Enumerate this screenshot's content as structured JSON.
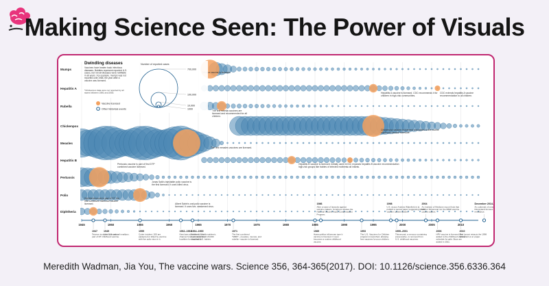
{
  "header": {
    "title": "Making Science Seen: The Power of Visuals"
  },
  "infographic": {
    "heading": "Dwindling diseases",
    "intro": "Vaccines have beaten back infectious diseases. Bubbles represent reported U.S. cases, but not all diseases were notifiable in all years. For example, mumps was not reported until 1968, the year after a vaccine was licensed.",
    "footnote": "*Chickenpox data were not reported by all states between 1981 and 2003.",
    "legend_scale_title": "Number of reported cases",
    "legend_scale_values": [
      "700,000",
      "100,000",
      "10,000",
      "1000"
    ],
    "legend_vaccine": "Vaccine licensed",
    "legend_events": "Other historical events",
    "diseases": [
      {
        "name": "Mumps",
        "note": "Mumps vaccine is licensed."
      },
      {
        "name": "Hepatitis A",
        "note": "Hepatitis A vaccine is licensed. CDC recommends it for children in high-risk communities."
      },
      {
        "name": "Rubella",
        "note": "The first rubella vaccines are licensed and recommended for all children."
      },
      {
        "name": "Chickenpox",
        "note": "Chickenpox vaccine is licensed and added to the routine childhood vaccine schedule."
      },
      {
        "name": "Measles",
        "note": "The first measles vaccines are licensed."
      },
      {
        "name": "Hepatitis B",
        "note": "Hepatitis B vaccine is licensed. Initially used in high-risk groups like babies of infected mothers."
      },
      {
        "name": "Pertussis",
        "note": "Pertussis vaccine is part of first DTP combined vaccine licensed."
      },
      {
        "name": "Polio",
        "note": "Jonas Salk's injectable polio vaccine is the first licensed. It uses killed virus."
      },
      {
        "name": "Diphtheria",
        "note": "Diphtheria toxoid is part of DT, the first combined childhood vaccine licensed."
      }
    ],
    "extra_notes": {
      "hepA_2006": "CDC extends hepatitis A vaccine recommendation to all children.",
      "hepB_1991": "CDC expands hepatitis B vaccine recommendation to all infants.",
      "polio_sabin": "Albert Sabin's oral polio vaccine is licensed. It uses live, weakened virus."
    },
    "years": [
      "1945",
      "1950",
      "1955",
      "1960",
      "1965",
      "1970",
      "1975",
      "1980",
      "1985",
      "1990",
      "1995",
      "2000",
      "2005",
      "2010"
    ],
    "events": [
      {
        "year": "1947",
        "text": "Tetanus toxoid is licensed as part of DT childhood vaccine."
      },
      {
        "year": "1949",
        "text": "Last U.S. case of smallpox."
      },
      {
        "year": "1955",
        "text": "Cutter incident: 200 are paralyzed or killed by vaccine with live polio virus in it."
      },
      {
        "year": "1962–1963",
        "text": "New laws allow the U.S. to channel funds to states and localities for vaccination."
      },
      {
        "year": "1964–1965",
        "text": "A historic rubella epidemic leads to births of 20,000 disabled U.S. babies."
      },
      {
        "year": "1971",
        "text": "The first combined \"MMR\"—measles, mumps, and rubella—vaccine is licensed."
      },
      {
        "year": "1985",
        "text": "Haemophilus influenzae type b vaccine is licensed. It soon becomes a routine childhood vaccine."
      },
      {
        "year": "1986",
        "text": "After a wave of lawsuits against vaccine-makers, Congress creates the National Vaccine Injury Compensation Program."
      },
      {
        "year": "1993",
        "text": "The U.S. Vaccines for Children program is launched, allowing free vaccines for poor children."
      },
      {
        "year": "1998",
        "text": "U.K. doctor Andrew Wakefield et al. publish a Lancet paper suggesting MMR vaccine causes autism."
      },
      {
        "year": "1999–2001",
        "text": "Thimerosal, a mercury-containing preservative, is removed from U.S. childhood vaccines."
      },
      {
        "year": "2004",
        "text": "An Institute of Medicine report finds that neither thimerosal nor the MMR vaccine causes autism."
      },
      {
        "year": "2006",
        "text": "HPV vaccine is licensed and added to the childhood vaccine schedule for girls. Boys are added in 2011."
      },
      {
        "year": "December 2014–February 2015",
        "text": "An outbreak of measles that begins at Disneyland focuses attention on vaccine resistance."
      },
      {
        "year": "2010",
        "text": "The Lancet retracts the 1998 Wakefield et al. paper."
      }
    ],
    "colors": {
      "bubble": "#4d88b4",
      "vaccine": "#f3a15f",
      "event_marker": "#1f5f8f",
      "frame": "#c0256f"
    }
  },
  "citation": "Meredith Wadman, Jia You, The vaccine wars. Science 356, 364-365(2017). DOI: 10.1126/science.356.6336.364"
}
